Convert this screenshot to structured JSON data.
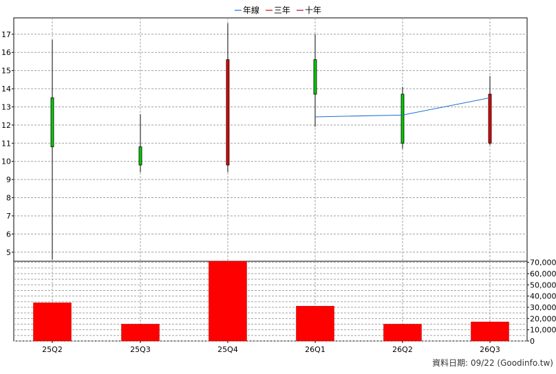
{
  "legend": [
    {
      "label": "年線",
      "color": "#1a6fd0"
    },
    {
      "label": "三年",
      "color": "#e00000"
    },
    {
      "label": "十年",
      "color": "#b00040"
    }
  ],
  "footer": "資料日期: 09/22  (Goodinfo.tw)",
  "colors": {
    "up": "#00cc00",
    "down": "#dd0000",
    "volume": "#ff0000",
    "grid": "#a0a0a0",
    "ma_year": "#1a6fd0"
  },
  "chart_data": [
    {
      "type": "candlestick",
      "categories": [
        "25Q2",
        "25Q3",
        "25Q4",
        "26Q1",
        "26Q2",
        "26Q3"
      ],
      "candles": [
        {
          "open": 10.8,
          "high": 16.7,
          "low": 4.6,
          "close": 13.5
        },
        {
          "open": 9.8,
          "high": 12.6,
          "low": 9.4,
          "close": 10.8
        },
        {
          "open": 15.6,
          "high": 17.6,
          "low": 9.4,
          "close": 9.8
        },
        {
          "open": 13.7,
          "high": 17.0,
          "low": 11.9,
          "close": 15.6
        },
        {
          "open": 11.0,
          "high": 14.1,
          "low": 10.7,
          "close": 13.7
        },
        {
          "open": 13.7,
          "high": 14.7,
          "low": 10.9,
          "close": 11.0
        }
      ],
      "series": [
        {
          "name": "年線",
          "values": [
            null,
            null,
            null,
            12.45,
            12.55,
            13.5
          ]
        }
      ],
      "yticks": [
        5,
        6,
        7,
        8,
        9,
        10,
        11,
        12,
        13,
        14,
        15,
        16,
        17
      ],
      "ylim": [
        4.5,
        17.9
      ],
      "grid": true,
      "legend_position": "top-center"
    },
    {
      "type": "bar",
      "categories": [
        "25Q2",
        "25Q3",
        "25Q4",
        "26Q1",
        "26Q2",
        "26Q3"
      ],
      "values": [
        34000,
        15000,
        71000,
        31000,
        15000,
        17000
      ],
      "yticks": [
        "0",
        "10,000",
        "20,000",
        "30,000",
        "40,000",
        "50,000",
        "60,000",
        "70,000"
      ],
      "ylim": [
        0,
        71000
      ],
      "grid": true
    }
  ]
}
